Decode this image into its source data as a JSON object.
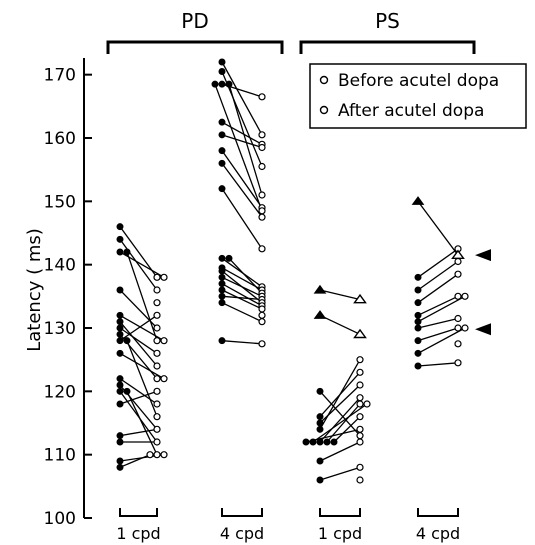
{
  "chart_data": {
    "type": "scatter",
    "ylabel": "Latency ( ms)",
    "ylim": [
      100,
      172
    ],
    "yticks": [
      100,
      110,
      120,
      130,
      140,
      150,
      160,
      170
    ],
    "groups": [
      {
        "label": "PD",
        "categories": [
          "1 cpd",
          "4 cpd"
        ]
      },
      {
        "label": "PS",
        "categories": [
          "1 cpd",
          "4 cpd"
        ]
      }
    ],
    "categories": [
      "1 cpd",
      "4 cpd",
      "1 cpd",
      "4 cpd"
    ],
    "legend": {
      "placement": "top-right",
      "entries": [
        {
          "label": "Before acutel dopa",
          "marker": "filled-circle"
        },
        {
          "label": "After acutel dopa",
          "marker": "open-circle"
        }
      ]
    },
    "series": [
      {
        "name": "Before acutel dopa",
        "note": "filled markers",
        "values_by_category": [
          [
            146,
            144,
            142,
            142,
            136,
            132,
            131,
            130,
            129,
            128,
            128,
            126,
            122,
            121,
            120,
            120,
            118,
            113,
            112,
            109,
            108
          ],
          [
            172,
            170.5,
            168.5,
            168.5,
            168.5,
            162.5,
            160.5,
            158,
            156,
            152,
            141,
            141,
            139.5,
            139,
            138,
            137,
            136,
            135,
            134,
            128
          ],
          [
            136,
            132,
            120,
            116,
            115,
            114,
            112,
            112,
            112,
            112,
            112,
            109,
            106
          ],
          [
            150,
            138,
            136,
            134,
            132,
            131,
            130,
            128,
            126,
            124
          ]
        ]
      },
      {
        "name": "After acutel dopa",
        "note": "open markers",
        "values_by_category": [
          [
            138,
            138,
            136,
            134,
            132,
            130,
            128,
            128,
            126,
            124,
            122,
            122,
            120,
            118,
            116,
            114,
            112,
            110,
            110,
            110
          ],
          [
            166.5,
            160.5,
            159,
            158.5,
            155.5,
            151,
            149,
            148.5,
            147.5,
            142.5,
            136.5,
            136,
            135.5,
            135,
            134.5,
            134,
            133.5,
            133,
            132,
            131,
            127.5
          ],
          [
            134.5,
            129,
            125,
            123,
            121,
            119,
            118,
            118,
            116,
            114,
            113,
            112,
            108,
            106
          ],
          [
            142.5,
            141.5,
            140.5,
            138.5,
            135,
            135,
            131.5,
            130,
            130,
            127.5,
            124.5
          ]
        ]
      }
    ],
    "arrows": [
      {
        "category_index": 3,
        "y": 141.5
      },
      {
        "category_index": 3,
        "y": 129.8
      }
    ],
    "pairs": [
      [
        [
          0,
          146,
          0,
          138
        ],
        [
          0,
          144,
          0,
          136
        ],
        [
          0,
          142,
          0,
          138
        ],
        [
          0,
          142,
          0,
          128
        ],
        [
          0,
          136,
          0,
          130
        ],
        [
          0,
          132,
          0,
          128
        ],
        [
          0,
          131,
          0,
          124
        ],
        [
          0,
          130,
          0,
          126
        ],
        [
          0,
          129,
          0,
          122
        ],
        [
          0,
          128,
          0,
          132
        ],
        [
          0,
          128,
          0,
          116
        ],
        [
          0,
          126,
          0,
          122
        ],
        [
          0,
          122,
          0,
          118
        ],
        [
          0,
          121,
          0,
          114
        ],
        [
          0,
          120,
          0,
          112
        ],
        [
          0,
          120,
          0,
          110
        ],
        [
          0,
          118,
          0,
          120
        ],
        [
          0,
          113,
          0,
          114
        ],
        [
          0,
          112,
          0,
          112
        ],
        [
          0,
          109,
          0,
          110
        ],
        [
          0,
          108,
          0,
          110
        ]
      ],
      [
        [
          0,
          172,
          0,
          160.5
        ],
        [
          0,
          170.5,
          0,
          155.5
        ],
        [
          0,
          168.5,
          0,
          166.5
        ],
        [
          0,
          168.5,
          0,
          151
        ],
        [
          0,
          168.5,
          0,
          148.5
        ],
        [
          0,
          162.5,
          0,
          159
        ],
        [
          0,
          160.5,
          0,
          158.5
        ],
        [
          0,
          158,
          0,
          149
        ],
        [
          0,
          156,
          0,
          147.5
        ],
        [
          0,
          152,
          0,
          142.5
        ],
        [
          0,
          141,
          0,
          136.5
        ],
        [
          0,
          141,
          0,
          135.5
        ],
        [
          0,
          139.5,
          0,
          136
        ],
        [
          0,
          139,
          0,
          134
        ],
        [
          0,
          138,
          0,
          135
        ],
        [
          0,
          137,
          0,
          133.5
        ],
        [
          0,
          136,
          0,
          133
        ],
        [
          0,
          135,
          0,
          134.5
        ],
        [
          0,
          134,
          0,
          131
        ],
        [
          0,
          128,
          0,
          127.5
        ]
      ],
      [
        [
          1,
          136,
          1,
          134.5
        ],
        [
          1,
          132,
          1,
          129
        ],
        [
          0,
          120,
          0,
          113
        ],
        [
          0,
          116,
          0,
          123
        ],
        [
          0,
          115,
          0,
          121
        ],
        [
          0,
          114,
          0,
          125
        ],
        [
          0,
          112,
          0,
          119
        ],
        [
          0,
          112,
          0,
          118
        ],
        [
          0,
          112,
          0,
          118
        ],
        [
          0,
          112,
          0,
          116
        ],
        [
          0,
          112,
          0,
          114
        ],
        [
          0,
          109,
          0,
          112
        ],
        [
          0,
          106,
          0,
          108
        ]
      ],
      [
        [
          1,
          150,
          1,
          141.5
        ],
        [
          0,
          138,
          0,
          142.5
        ],
        [
          0,
          136,
          0,
          140.5
        ],
        [
          0,
          134,
          0,
          138.5
        ],
        [
          0,
          132,
          0,
          135
        ],
        [
          0,
          131,
          0,
          135
        ],
        [
          0,
          130,
          0,
          131.5
        ],
        [
          0,
          128,
          0,
          130
        ],
        [
          0,
          126,
          0,
          130
        ],
        [
          0,
          124,
          0,
          124.5
        ]
      ]
    ]
  }
}
